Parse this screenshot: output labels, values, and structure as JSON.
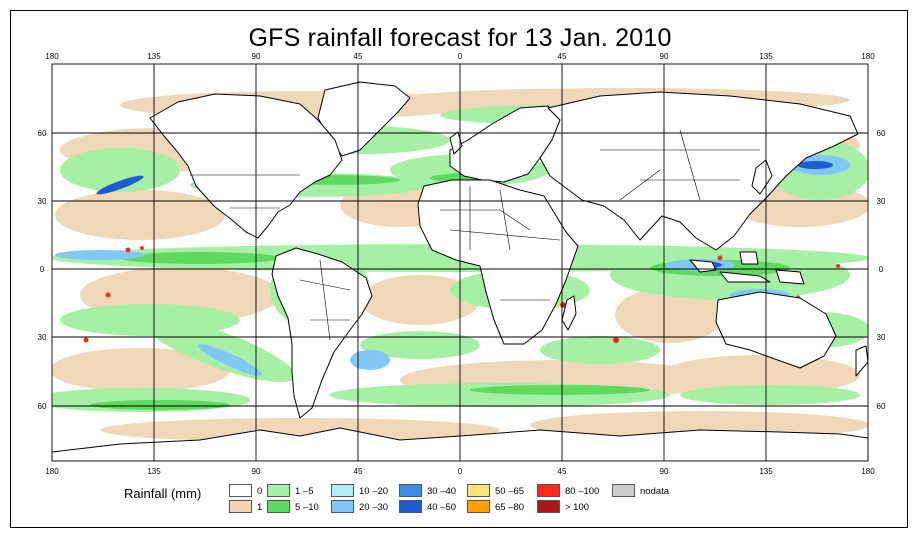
{
  "title": "GFS rainfall forecast for 13 Jan. 2010",
  "axes": {
    "longitude_ticks": [
      "180",
      "135",
      "90",
      "45",
      "0",
      "45",
      "90",
      "135",
      "180"
    ],
    "latitude_ticks_left": [
      "60",
      "30",
      "0",
      "30",
      "60"
    ],
    "latitude_ticks_right": [
      "60",
      "30",
      "0",
      "30",
      "60"
    ]
  },
  "legend": {
    "title": "Rainfall (mm)",
    "items": [
      {
        "label": "0",
        "color": "#ffffff"
      },
      {
        "label": "1",
        "color": "#efd6b4"
      },
      {
        "label": "1 –5",
        "color": "#a6f0a6"
      },
      {
        "label": "5 –10",
        "color": "#5fd95f"
      },
      {
        "label": "10 –20",
        "color": "#b2ecf2"
      },
      {
        "label": "20 –30",
        "color": "#82c8f6"
      },
      {
        "label": "30 –40",
        "color": "#3a8ee8"
      },
      {
        "label": "40 –50",
        "color": "#1e5ad2"
      },
      {
        "label": "50 –65",
        "color": "#ffe37a"
      },
      {
        "label": "65 –80",
        "color": "#ffa000"
      },
      {
        "label": "80 –100",
        "color": "#ff2a1a"
      },
      {
        "label": "> 100",
        "color": "#a81818"
      },
      {
        "label": "nodata",
        "color": "#cccccc"
      }
    ]
  }
}
